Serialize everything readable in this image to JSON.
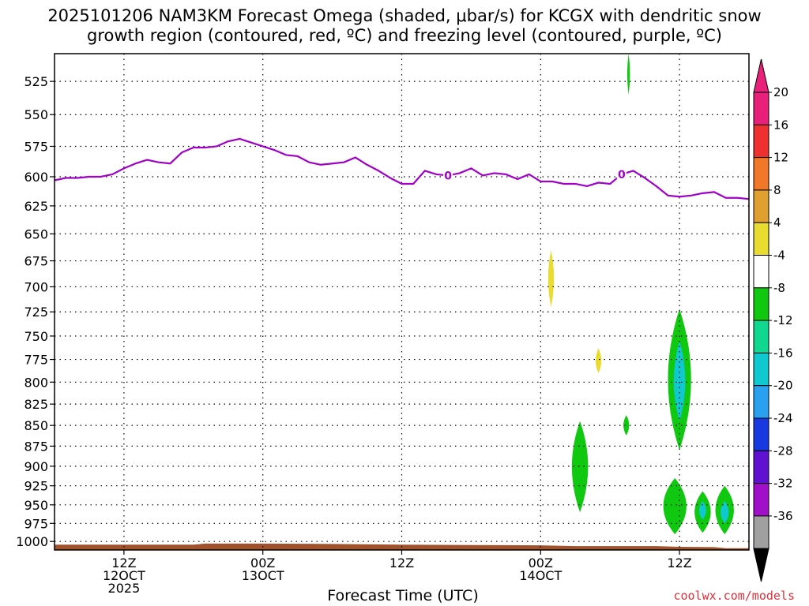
{
  "title": {
    "line1": "2025101206 NAM3KM Forecast Omega (shaded, μbar/s) for KCGX with dendritic snow",
    "line2": "growth region (contoured, red, ºC) and freezing level (contoured, purple, ºC)"
  },
  "credit": "coolwx.com/models",
  "colors": {
    "freezing_level": "#a000c8",
    "ground": "#a0522d",
    "grid": "#000000"
  },
  "chart_data": {
    "type": "heatmap",
    "title": "2025101206 NAM3KM Forecast Omega for KCGX",
    "xlabel": "Forecast Time (UTC)",
    "ylabel": "",
    "x_range_hours": [
      0,
      60
    ],
    "ylim": [
      1012,
      505
    ],
    "y_ticks": [
      525,
      550,
      575,
      600,
      625,
      650,
      675,
      700,
      725,
      750,
      775,
      800,
      825,
      850,
      875,
      900,
      925,
      950,
      975,
      1000
    ],
    "x_ticks": [
      {
        "hour": 6,
        "line1": "12Z",
        "line2": "12OCT",
        "line3": "2025"
      },
      {
        "hour": 18,
        "line1": "00Z",
        "line2": "13OCT",
        "line3": ""
      },
      {
        "hour": 30,
        "line1": "12Z",
        "line2": "",
        "line3": ""
      },
      {
        "hour": 42,
        "line1": "00Z",
        "line2": "14OCT",
        "line3": ""
      },
      {
        "hour": 54,
        "line1": "12Z",
        "line2": "",
        "line3": ""
      }
    ],
    "freezing_level": {
      "label": "0",
      "hours": [
        0,
        1,
        2,
        3,
        4,
        5,
        6,
        7,
        8,
        9,
        10,
        11,
        12,
        13,
        14,
        15,
        16,
        17,
        18,
        19,
        20,
        21,
        22,
        23,
        24,
        25,
        26,
        27,
        28,
        29,
        30,
        31,
        32,
        33,
        34,
        35,
        36,
        37,
        38,
        39,
        40,
        41,
        42,
        43,
        44,
        45,
        46,
        47,
        48,
        49,
        50,
        51,
        52,
        53,
        54,
        55,
        56,
        57,
        58,
        59,
        60
      ],
      "pressure_hpa": [
        603,
        601,
        601,
        600,
        600,
        598,
        593,
        589,
        586,
        588,
        589,
        580,
        576,
        576,
        575,
        571,
        569,
        572,
        575,
        578,
        582,
        583,
        588,
        590,
        589,
        588,
        584,
        590,
        595,
        601,
        606,
        606,
        595,
        598,
        599,
        597,
        593,
        599,
        597,
        598,
        602,
        598,
        604,
        604,
        606,
        606,
        608,
        605,
        606,
        598,
        595,
        601,
        608,
        616,
        617,
        616,
        614,
        613,
        618,
        618,
        619
      ],
      "labels_at_hours": [
        34,
        49
      ]
    },
    "legend": {
      "unit": "μbar/s",
      "bins": [
        {
          "label": "20",
          "color": "#e8207a"
        },
        {
          "label": "16",
          "color": "#ee3030"
        },
        {
          "label": "12",
          "color": "#f07828"
        },
        {
          "label": "8",
          "color": "#e0a030"
        },
        {
          "label": "4",
          "color": "#e8dc30"
        },
        {
          "label": "-4",
          "color": "#ffffff"
        },
        {
          "label": "-8",
          "color": "#10c810"
        },
        {
          "label": "-12",
          "color": "#10d890"
        },
        {
          "label": "-16",
          "color": "#10c8d0"
        },
        {
          "label": "-20",
          "color": "#2aa0f0"
        },
        {
          "label": "-24",
          "color": "#1838e0"
        },
        {
          "label": "-28",
          "color": "#6010d0"
        },
        {
          "label": "-32",
          "color": "#a010c8"
        },
        {
          "label": "-36",
          "color": "#a0a0a0"
        }
      ],
      "below_color": "#000000"
    },
    "omega_features": [
      {
        "hour": 49.6,
        "p_top": 505,
        "p_bottom": 535,
        "hw_hours": 0.12,
        "value": -6,
        "color": "#10c810"
      },
      {
        "hour": 42.9,
        "p_top": 665,
        "p_bottom": 720,
        "hw_hours": 0.25,
        "value": 6,
        "color": "#e8dc30"
      },
      {
        "hour": 47.0,
        "p_top": 763,
        "p_bottom": 790,
        "hw_hours": 0.25,
        "value": 6,
        "color": "#e8dc30"
      },
      {
        "hour": 54.0,
        "p_top": 722,
        "p_bottom": 880,
        "hw_hours": 1.0,
        "value": -12,
        "color": "#10c810"
      },
      {
        "hour": 54.0,
        "p_top": 755,
        "p_bottom": 845,
        "hw_hours": 0.5,
        "value": -15,
        "color": "#10c8d0"
      },
      {
        "hour": 49.4,
        "p_top": 838,
        "p_bottom": 862,
        "hw_hours": 0.25,
        "value": -6,
        "color": "#10c810"
      },
      {
        "hour": 45.4,
        "p_top": 845,
        "p_bottom": 960,
        "hw_hours": 0.7,
        "value": -7,
        "color": "#10c810"
      },
      {
        "hour": 53.6,
        "p_top": 915,
        "p_bottom": 990,
        "hw_hours": 1.0,
        "value": -8,
        "color": "#10c810"
      },
      {
        "hour": 56.0,
        "p_top": 932,
        "p_bottom": 988,
        "hw_hours": 0.7,
        "value": -10,
        "color": "#10c810"
      },
      {
        "hour": 56.0,
        "p_top": 945,
        "p_bottom": 970,
        "hw_hours": 0.3,
        "value": -13,
        "color": "#10c8d0"
      },
      {
        "hour": 57.9,
        "p_top": 925,
        "p_bottom": 990,
        "hw_hours": 0.8,
        "value": -10,
        "color": "#10c810"
      },
      {
        "hour": 57.9,
        "p_top": 945,
        "p_bottom": 975,
        "hw_hours": 0.35,
        "value": -13,
        "color": "#10c8d0"
      }
    ],
    "surface_pressure": {
      "hours": [
        0,
        6,
        12,
        13,
        18,
        24,
        30,
        36,
        42,
        45,
        48,
        52,
        54,
        57,
        58,
        60
      ],
      "pressure_hpa": [
        1004.5,
        1004.5,
        1004.5,
        1003.0,
        1003.0,
        1003.5,
        1004.5,
        1005.0,
        1005.5,
        1006.5,
        1006.5,
        1006.5,
        1007.5,
        1008.0,
        1009.5,
        1009.5
      ]
    }
  },
  "xtitle": "Forecast Time (UTC)"
}
